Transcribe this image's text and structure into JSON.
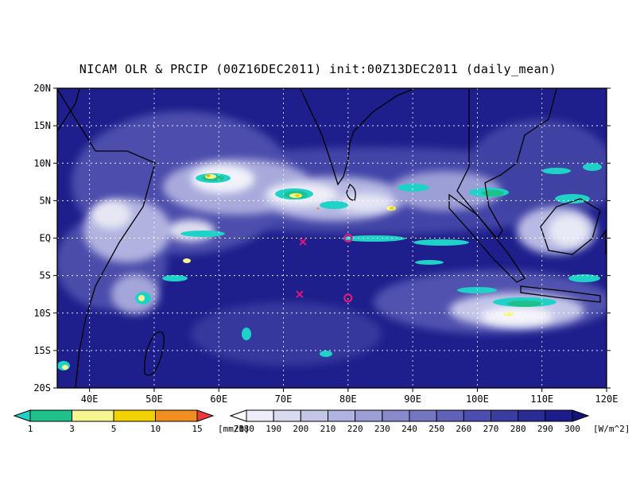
{
  "title": "NICAM OLR & PRCIP (00Z16DEC2011) init:00Z13DEC2011 (daily_mean)",
  "map": {
    "lon_range": [
      35,
      120
    ],
    "lat_range": [
      -20,
      20
    ],
    "lat_labels": [
      "20N",
      "15N",
      "10N",
      "5N",
      "EQ",
      "5S",
      "10S",
      "15S",
      "20S"
    ],
    "lon_labels": [
      "40E",
      "50E",
      "60E",
      "70E",
      "80E",
      "90E",
      "100E",
      "110E",
      "120E"
    ],
    "lat_ticks": [
      20,
      15,
      10,
      5,
      0,
      -5,
      -10,
      -15,
      -20
    ],
    "lon_ticks": [
      40,
      50,
      60,
      70,
      80,
      90,
      100,
      110,
      120
    ],
    "grid_lats": [
      15,
      10,
      5,
      0,
      -5,
      -10,
      -15
    ],
    "grid_lons": [
      40,
      50,
      60,
      70,
      80,
      90,
      100,
      110
    ],
    "markers": [
      {
        "symbol": "x",
        "lon": 73,
        "lat": -0.5
      },
      {
        "symbol": "x",
        "lon": 72.5,
        "lat": -7.5
      },
      {
        "symbol": "o",
        "lon": 80,
        "lat": 0
      },
      {
        "symbol": "o",
        "lon": 80,
        "lat": -8
      }
    ],
    "marker_color": "#e0187a"
  },
  "precip_colorbar": {
    "labels": [
      "1",
      "3",
      "5",
      "10",
      "15",
      "20"
    ],
    "unit": "[mm/h]",
    "colors": [
      "#1ed2c8",
      "#20c08a",
      "#f6f690",
      "#f2d200",
      "#f08e20",
      "#ee3a3a"
    ]
  },
  "olr_colorbar": {
    "labels": [
      "180",
      "190",
      "200",
      "210",
      "220",
      "230",
      "240",
      "250",
      "260",
      "270",
      "280",
      "290",
      "300"
    ],
    "unit": "[W/m^2]",
    "colors": [
      "#ffffff",
      "#ecedf8",
      "#d8daf0",
      "#c4c6e8",
      "#b0b2e0",
      "#9c9ed6",
      "#888acc",
      "#7476c2",
      "#6062b8",
      "#4c4eae",
      "#3a3ca2",
      "#2a2c96",
      "#1c1d8a",
      "#12137c"
    ]
  }
}
